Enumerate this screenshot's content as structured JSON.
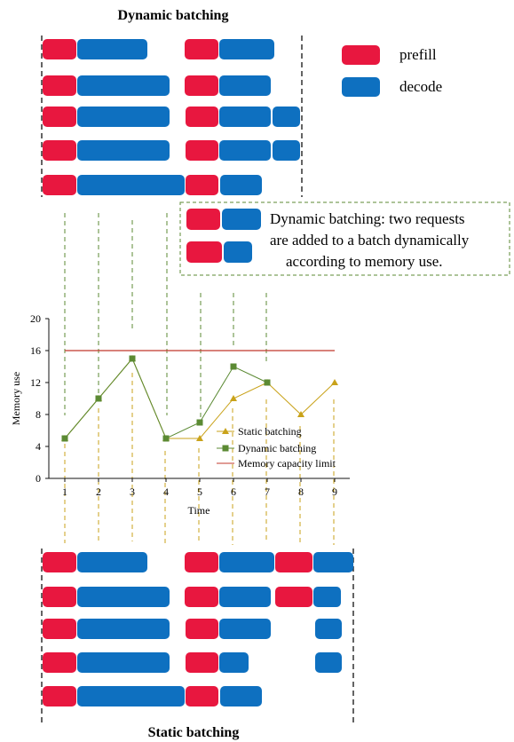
{
  "top_title": "Dynamic batching",
  "bottom_title": "Static batching",
  "legend": {
    "prefill_label": "prefill",
    "decode_label": "decode",
    "prefill_color": "#e8173f",
    "decode_color": "#0e70c0"
  },
  "annotation": {
    "line1": "Dynamic batching: two requests",
    "line2": "are added to a batch dynamically",
    "line3": "according to memory use."
  },
  "colors": {
    "static": "#c9a21a",
    "dynamic": "#5b8a33",
    "capacity": "#c0382b",
    "guide_green": "#5b8a33",
    "guide_orange": "#c9a21a"
  },
  "chart_data": {
    "type": "line",
    "xlabel": "Time",
    "ylabel": "Memory use",
    "x": [
      1,
      2,
      3,
      4,
      5,
      6,
      7,
      8,
      9
    ],
    "xlim": [
      0.5,
      9.5
    ],
    "ylim": [
      0,
      20
    ],
    "yticks": [
      0,
      4,
      8,
      12,
      16,
      20
    ],
    "legend_position": "center-right",
    "series": [
      {
        "name": "Static batching",
        "marker": "triangle",
        "x": [
          1,
          2,
          3,
          4,
          5,
          6,
          7,
          8,
          9
        ],
        "values": [
          5,
          10,
          15,
          5,
          5,
          10,
          12,
          8,
          12
        ]
      },
      {
        "name": "Dynamic batching",
        "marker": "square",
        "x": [
          1,
          2,
          3,
          4,
          5,
          6,
          7
        ],
        "values": [
          5,
          10,
          15,
          5,
          7,
          14,
          12
        ]
      },
      {
        "name": "Memory capacity limit",
        "marker": "none",
        "x": [
          1,
          9
        ],
        "values": [
          16,
          16
        ]
      }
    ]
  }
}
